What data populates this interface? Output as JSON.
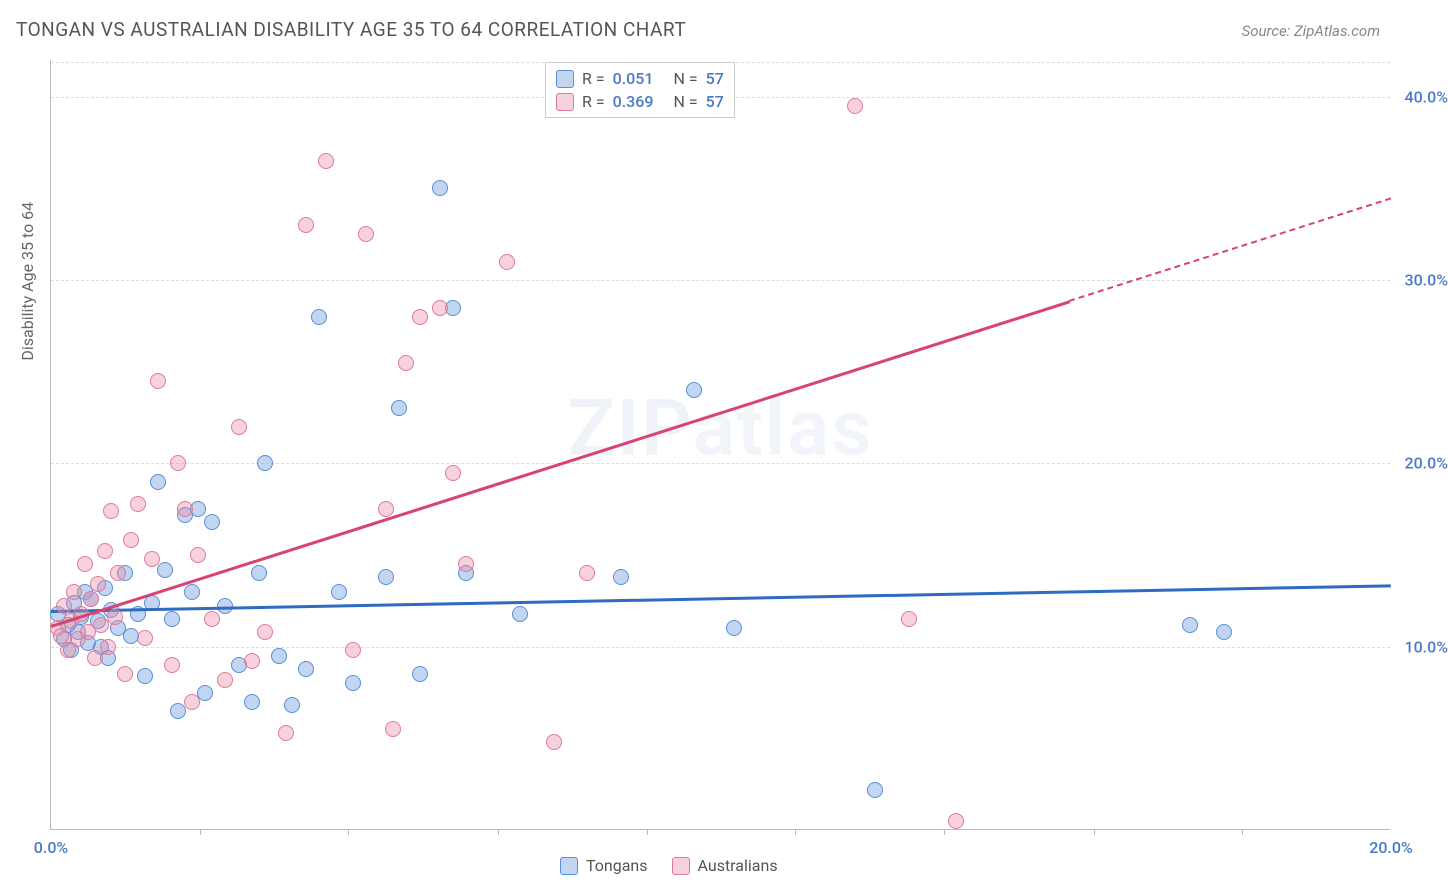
{
  "title": "TONGAN VS AUSTRALIAN DISABILITY AGE 35 TO 64 CORRELATION CHART",
  "source": "Source: ZipAtlas.com",
  "ylabel": "Disability Age 35 to 64",
  "watermark": "ZIPatlas",
  "chart": {
    "type": "scatter",
    "xlim": [
      0,
      20
    ],
    "ylim": [
      0,
      42
    ],
    "xtick_labels": [
      "0.0%",
      "20.0%"
    ],
    "xtick_positions": [
      0,
      20
    ],
    "xtick_minor": [
      2.22,
      4.44,
      6.67,
      8.89,
      11.11,
      13.33,
      15.56,
      17.78
    ],
    "ytick_labels": [
      "10.0%",
      "20.0%",
      "30.0%",
      "40.0%"
    ],
    "ytick_positions": [
      10,
      20,
      30,
      40
    ],
    "grid_color": "#dddddd",
    "axis_color": "#bbbbbb",
    "background_color": "#ffffff",
    "series": [
      {
        "name": "Tongans",
        "fill": "rgba(120,165,225,0.45)",
        "stroke": "#5a8fd6",
        "line_color": "#2f6bc0",
        "r_value": "0.051",
        "n_value": "57",
        "regression": {
          "x1": 0,
          "y1": 12.0,
          "x2": 20,
          "y2": 13.4,
          "dash_from": null
        },
        "points": [
          [
            0.1,
            11.8
          ],
          [
            0.2,
            10.4
          ],
          [
            0.25,
            11.2
          ],
          [
            0.3,
            9.8
          ],
          [
            0.35,
            12.4
          ],
          [
            0.4,
            10.8
          ],
          [
            0.45,
            11.6
          ],
          [
            0.5,
            13.0
          ],
          [
            0.55,
            10.2
          ],
          [
            0.6,
            12.6
          ],
          [
            0.7,
            11.4
          ],
          [
            0.75,
            10.0
          ],
          [
            0.8,
            13.2
          ],
          [
            0.85,
            9.4
          ],
          [
            0.9,
            12.0
          ],
          [
            1.0,
            11.0
          ],
          [
            1.1,
            14.0
          ],
          [
            1.2,
            10.6
          ],
          [
            1.3,
            11.8
          ],
          [
            1.4,
            8.4
          ],
          [
            1.5,
            12.4
          ],
          [
            1.6,
            19.0
          ],
          [
            1.7,
            14.2
          ],
          [
            1.8,
            11.5
          ],
          [
            1.9,
            6.5
          ],
          [
            2.0,
            17.2
          ],
          [
            2.1,
            13.0
          ],
          [
            2.2,
            17.5
          ],
          [
            2.3,
            7.5
          ],
          [
            2.4,
            16.8
          ],
          [
            2.6,
            12.2
          ],
          [
            2.8,
            9.0
          ],
          [
            3.0,
            7.0
          ],
          [
            3.1,
            14.0
          ],
          [
            3.2,
            20.0
          ],
          [
            3.4,
            9.5
          ],
          [
            3.6,
            6.8
          ],
          [
            3.8,
            8.8
          ],
          [
            4.0,
            28.0
          ],
          [
            4.3,
            13.0
          ],
          [
            4.5,
            8.0
          ],
          [
            5.0,
            13.8
          ],
          [
            5.2,
            23.0
          ],
          [
            5.5,
            8.5
          ],
          [
            5.8,
            35.0
          ],
          [
            6.0,
            28.5
          ],
          [
            6.2,
            14.0
          ],
          [
            7.0,
            11.8
          ],
          [
            8.5,
            13.8
          ],
          [
            9.6,
            24.0
          ],
          [
            10.2,
            11.0
          ],
          [
            12.3,
            2.2
          ],
          [
            17.0,
            11.2
          ],
          [
            17.5,
            10.8
          ]
        ]
      },
      {
        "name": "Australians",
        "fill": "rgba(235,140,165,0.40)",
        "stroke": "#e07a9a",
        "line_color": "#d8436f",
        "r_value": "0.369",
        "n_value": "57",
        "regression": {
          "x1": 0,
          "y1": 11.2,
          "x2": 20,
          "y2": 34.5,
          "dash_from": 15.2
        },
        "points": [
          [
            0.1,
            11.0
          ],
          [
            0.15,
            10.6
          ],
          [
            0.2,
            12.2
          ],
          [
            0.25,
            9.8
          ],
          [
            0.3,
            11.4
          ],
          [
            0.35,
            13.0
          ],
          [
            0.4,
            10.4
          ],
          [
            0.45,
            11.8
          ],
          [
            0.5,
            14.5
          ],
          [
            0.55,
            10.8
          ],
          [
            0.6,
            12.6
          ],
          [
            0.65,
            9.4
          ],
          [
            0.7,
            13.4
          ],
          [
            0.75,
            11.2
          ],
          [
            0.8,
            15.2
          ],
          [
            0.85,
            10.0
          ],
          [
            0.9,
            17.4
          ],
          [
            0.95,
            11.6
          ],
          [
            1.0,
            14.0
          ],
          [
            1.1,
            8.5
          ],
          [
            1.2,
            15.8
          ],
          [
            1.3,
            17.8
          ],
          [
            1.4,
            10.5
          ],
          [
            1.5,
            14.8
          ],
          [
            1.6,
            24.5
          ],
          [
            1.8,
            9.0
          ],
          [
            1.9,
            20.0
          ],
          [
            2.0,
            17.5
          ],
          [
            2.1,
            7.0
          ],
          [
            2.2,
            15.0
          ],
          [
            2.4,
            11.5
          ],
          [
            2.6,
            8.2
          ],
          [
            2.8,
            22.0
          ],
          [
            3.0,
            9.2
          ],
          [
            3.2,
            10.8
          ],
          [
            3.5,
            5.3
          ],
          [
            3.8,
            33.0
          ],
          [
            4.1,
            36.5
          ],
          [
            4.5,
            9.8
          ],
          [
            4.7,
            32.5
          ],
          [
            5.0,
            17.5
          ],
          [
            5.1,
            5.5
          ],
          [
            5.3,
            25.5
          ],
          [
            5.5,
            28.0
          ],
          [
            5.8,
            28.5
          ],
          [
            6.0,
            19.5
          ],
          [
            6.2,
            14.5
          ],
          [
            6.8,
            31.0
          ],
          [
            7.5,
            4.8
          ],
          [
            8.0,
            14.0
          ],
          [
            12.0,
            39.5
          ],
          [
            12.8,
            11.5
          ],
          [
            13.5,
            0.5
          ]
        ]
      }
    ]
  },
  "legend_top": {
    "r_label": "R =",
    "n_label": "N ="
  },
  "legend_bottom": {
    "items": [
      "Tongans",
      "Australians"
    ]
  }
}
